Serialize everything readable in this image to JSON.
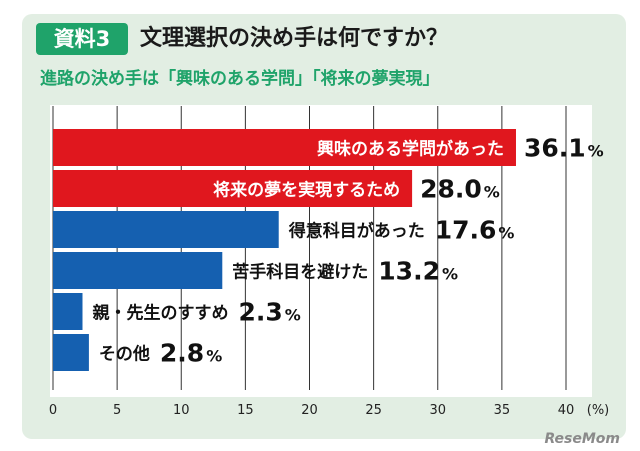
{
  "badge": "資料3",
  "title": "文理選択の決め手は何ですか？",
  "subtitle": "進路の決め手は「興味のある学問」「将来の夢実現」",
  "credit": "ReseMom",
  "colors": {
    "accent": "#1fa36a",
    "red": "#e0171e",
    "blue": "#1560b0",
    "panel": "#e2eee3"
  },
  "chart_data": {
    "type": "bar",
    "orientation": "horizontal",
    "categories": [
      "興味のある学問があった",
      "将来の夢を実現するため",
      "得意科目があった",
      "苦手科目を避けた",
      "親・先生のすすめ",
      "その他"
    ],
    "values": [
      36.1,
      28.0,
      17.6,
      13.2,
      2.3,
      2.8
    ],
    "value_labels": [
      "36.1",
      "28.0",
      "17.6",
      "13.2",
      "2.3",
      "2.8"
    ],
    "value_unit": "%",
    "bar_colors": [
      "#e0171e",
      "#e0171e",
      "#1560b0",
      "#1560b0",
      "#1560b0",
      "#1560b0"
    ],
    "label_inside": [
      true,
      true,
      false,
      false,
      false,
      false
    ],
    "xlim": [
      0,
      40
    ],
    "xticks": [
      "0",
      "5",
      "10",
      "15",
      "20",
      "25",
      "30",
      "35",
      "40"
    ],
    "x_unit_label": "(%)",
    "grid": true
  }
}
